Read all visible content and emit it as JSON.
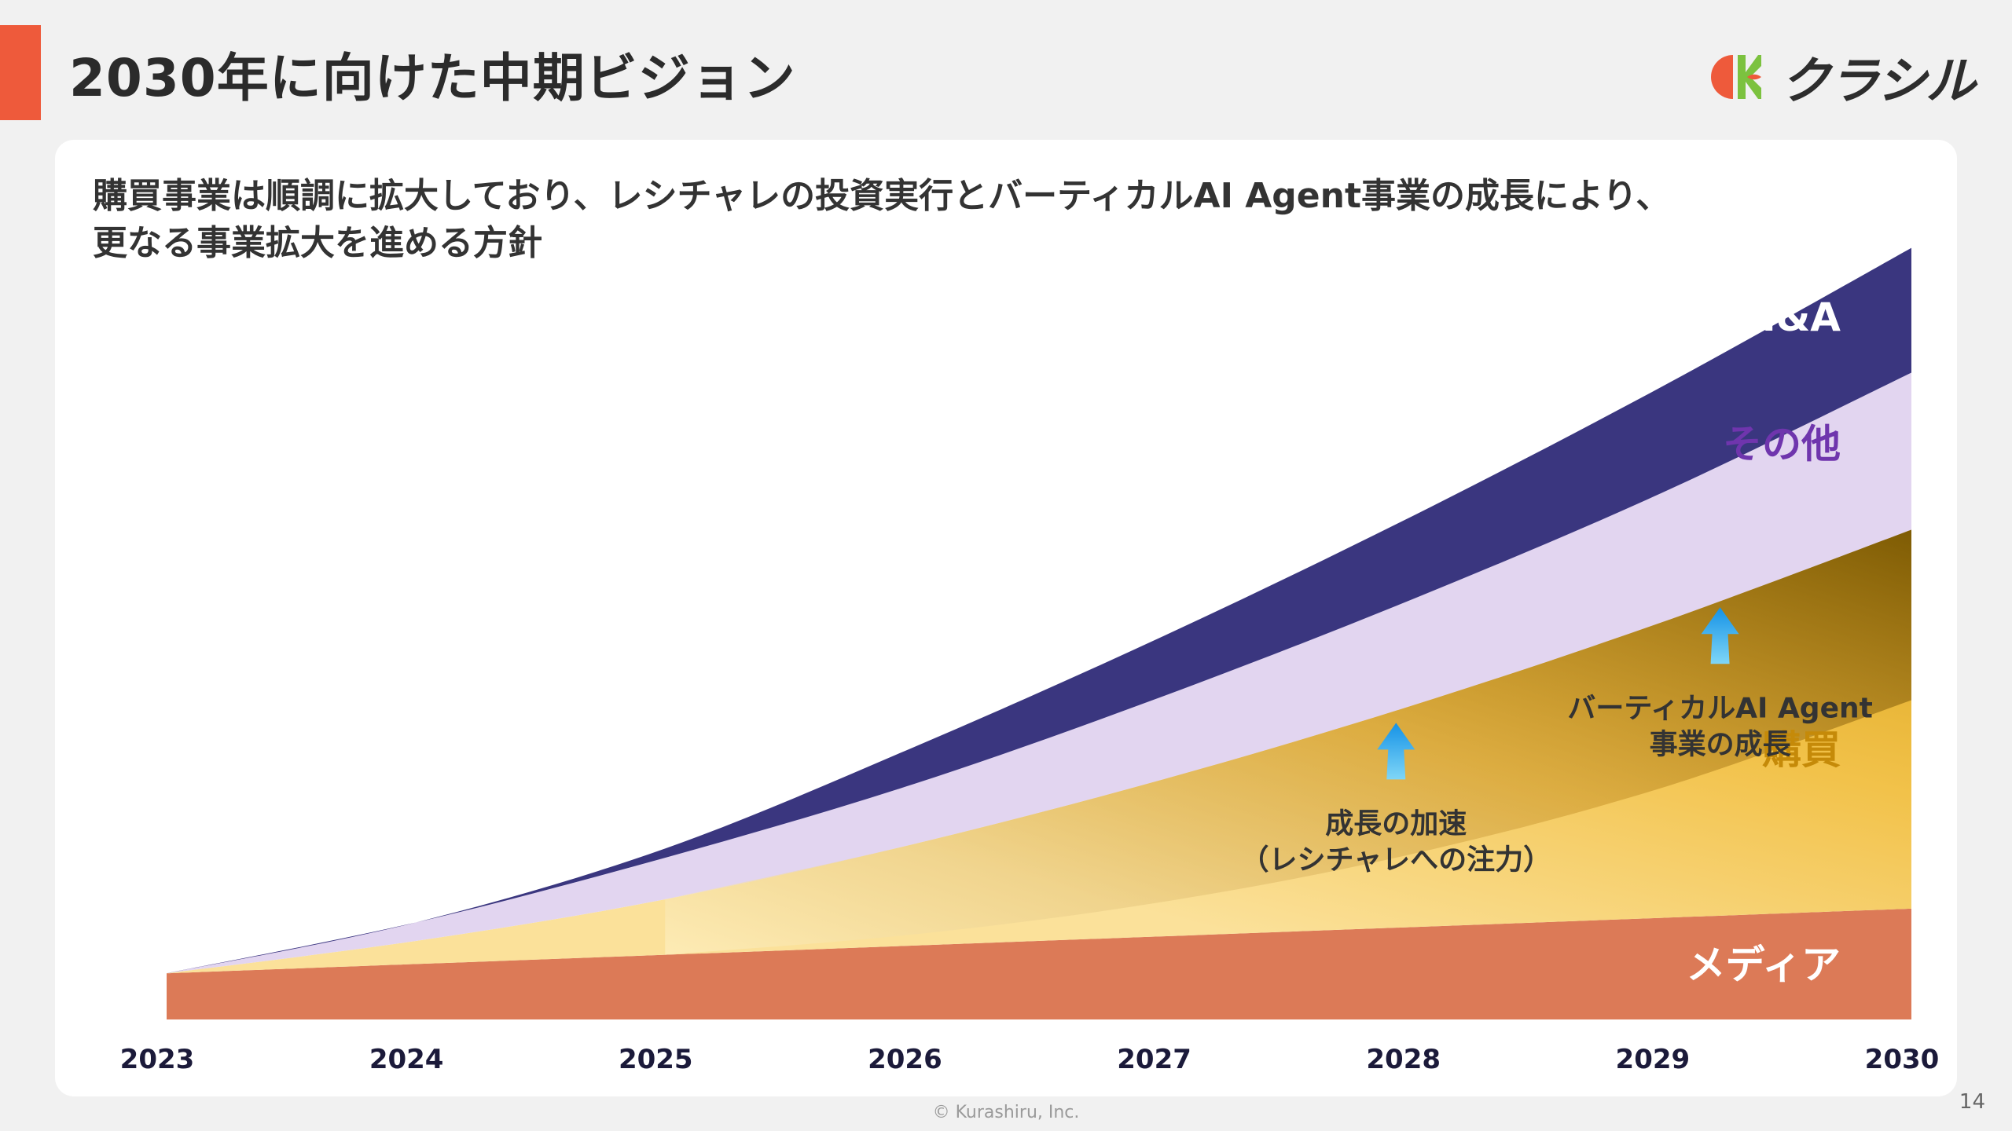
{
  "header": {
    "title": "2030年に向けた中期ビジョン",
    "brand": "クラシル",
    "accent_color": "#ee5a3b"
  },
  "subtitle": {
    "line1": "購買事業は順調に拡大しており、レシチャレの投資実行とバーティカルAI Agent事業の成長により、",
    "line2": "更なる事業拡大を進める方針"
  },
  "chart_data": {
    "type": "area",
    "stacked": true,
    "x": [
      "2023",
      "2024",
      "2025",
      "2026",
      "2027",
      "2028",
      "2029",
      "2030"
    ],
    "series": [
      {
        "name": "メディア",
        "color": "#dc7a57",
        "label_color": "#ffffff",
        "values": [
          1.0,
          1.2,
          1.4,
          1.6,
          1.8,
          2.0,
          2.2,
          2.4
        ]
      },
      {
        "name": "購買",
        "color": "#fbdf8c",
        "label_color": "#c58a09",
        "values": [
          0.0,
          0.5,
          1.2,
          2.2,
          3.4,
          4.8,
          6.4,
          8.2
        ]
      },
      {
        "name": "その他",
        "color": "#e2d5f0",
        "label_color": "#6f35ad",
        "values": [
          0.0,
          0.4,
          0.9,
          1.3,
          1.8,
          2.3,
          2.8,
          3.4
        ]
      },
      {
        "name": "M&A",
        "color": "#3a367f",
        "label_color": "#ffffff",
        "values": [
          0.0,
          0.0,
          0.2,
          0.8,
          1.3,
          1.8,
          2.3,
          2.7
        ]
      }
    ],
    "annotations": [
      {
        "text": "成長の加速",
        "sub": "（レシチャレへの注力）"
      },
      {
        "text": "バーティカルAI Agent",
        "sub": "事業の成長"
      }
    ],
    "ylim": [
      0,
      17
    ],
    "grid": false,
    "legend": "inline labels at right edge",
    "xlabel": "",
    "ylabel": ""
  },
  "footer": {
    "copyright": "© Kurashiru, Inc.",
    "page": "14"
  }
}
